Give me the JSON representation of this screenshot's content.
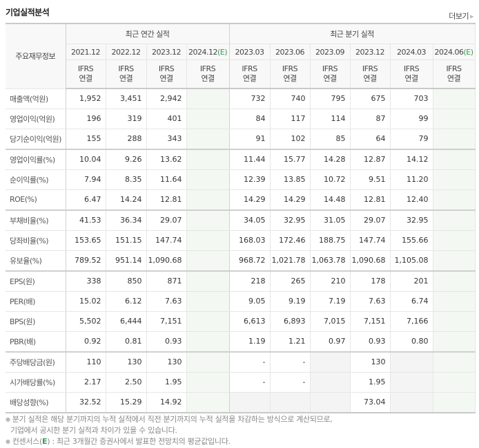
{
  "header": {
    "title": "기업실적분석",
    "more_label": "더보기"
  },
  "table": {
    "label_header": "주요재무정보",
    "groups": {
      "annual": "최근 연간 실적",
      "quarterly": "최근 분기 실적"
    },
    "periods": [
      {
        "date": "2021.12",
        "est": ""
      },
      {
        "date": "2022.12",
        "est": ""
      },
      {
        "date": "2023.12",
        "est": ""
      },
      {
        "date": "2024.12",
        "est": "(E)"
      },
      {
        "date": "2023.03",
        "est": ""
      },
      {
        "date": "2023.06",
        "est": ""
      },
      {
        "date": "2023.09",
        "est": ""
      },
      {
        "date": "2023.12",
        "est": ""
      },
      {
        "date": "2024.03",
        "est": ""
      },
      {
        "date": "2024.06",
        "est": "(E)"
      }
    ],
    "ifrs_line1": "IFRS",
    "ifrs_line2": "연결",
    "rows": [
      {
        "label": "매출액(억원)",
        "values": [
          "1,952",
          "3,451",
          "2,942",
          "",
          "732",
          "740",
          "795",
          "675",
          "703",
          ""
        ]
      },
      {
        "label": "영업이익(억원)",
        "values": [
          "196",
          "319",
          "401",
          "",
          "84",
          "117",
          "114",
          "87",
          "99",
          ""
        ]
      },
      {
        "label": "당기순이익(억원)",
        "values": [
          "155",
          "288",
          "343",
          "",
          "91",
          "102",
          "85",
          "64",
          "79",
          ""
        ]
      },
      {
        "label": "영업이익률(%)",
        "values": [
          "10.04",
          "9.26",
          "13.62",
          "",
          "11.44",
          "15.77",
          "14.28",
          "12.87",
          "14.12",
          ""
        ]
      },
      {
        "label": "순이익률(%)",
        "values": [
          "7.94",
          "8.35",
          "11.64",
          "",
          "12.39",
          "13.85",
          "10.72",
          "9.51",
          "11.20",
          ""
        ]
      },
      {
        "label": "ROE(%)",
        "values": [
          "6.47",
          "14.24",
          "12.81",
          "",
          "14.29",
          "14.29",
          "14.48",
          "12.81",
          "12.40",
          ""
        ]
      },
      {
        "label": "부채비율(%)",
        "values": [
          "41.53",
          "36.34",
          "29.07",
          "",
          "34.05",
          "32.95",
          "31.05",
          "29.07",
          "32.95",
          ""
        ]
      },
      {
        "label": "당좌비율(%)",
        "values": [
          "153.65",
          "151.15",
          "147.74",
          "",
          "168.03",
          "172.46",
          "188.75",
          "147.74",
          "155.66",
          ""
        ]
      },
      {
        "label": "유보율(%)",
        "values": [
          "789.52",
          "951.14",
          "1,090.68",
          "",
          "968.72",
          "1,021.78",
          "1,063.78",
          "1,090.68",
          "1,105.08",
          ""
        ]
      },
      {
        "label": "EPS(원)",
        "values": [
          "338",
          "850",
          "871",
          "",
          "218",
          "265",
          "210",
          "178",
          "201",
          ""
        ]
      },
      {
        "label": "PER(배)",
        "values": [
          "15.02",
          "6.12",
          "7.63",
          "",
          "9.05",
          "9.19",
          "7.19",
          "7.63",
          "6.74",
          ""
        ]
      },
      {
        "label": "BPS(원)",
        "values": [
          "5,502",
          "6,444",
          "7,151",
          "",
          "6,613",
          "6,893",
          "7,015",
          "7,151",
          "7,166",
          ""
        ]
      },
      {
        "label": "PBR(배)",
        "values": [
          "0.92",
          "0.81",
          "0.93",
          "",
          "1.19",
          "1.21",
          "0.97",
          "0.93",
          "0.80",
          ""
        ]
      },
      {
        "label": "주당배당금(원)",
        "values": [
          "110",
          "130",
          "130",
          "",
          "-",
          "-",
          "",
          "130",
          "",
          ""
        ]
      },
      {
        "label": "시가배당률(%)",
        "values": [
          "2.17",
          "2.50",
          "1.95",
          "",
          "-",
          "-",
          "",
          "1.95",
          "",
          ""
        ]
      },
      {
        "label": "배당성향(%)",
        "values": [
          "32.52",
          "15.29",
          "14.92",
          "",
          "",
          "",
          "",
          "73.04",
          "",
          ""
        ]
      }
    ]
  },
  "notes": {
    "line1": "분기 실적은 해당 분기까지의 누적 실적에서 직전 분기까지의 누적 실적을 차감하는 방식으로 계산되므로,",
    "line2": "기업에서 공시한 분기 실적과 차이가 있을 수 있습니다.",
    "line3_prefix": "컨센서스(",
    "line3_e": "E",
    "line3_suffix": ") : 최근 3개월간 증권사에서 발표한 전망치의 평균값입니다."
  },
  "colors": {
    "ifrs": "#e06b2a",
    "estimate": "#3a9a55",
    "estimate_bg": "#f3f8f3",
    "na_bg": "#f4f4f4"
  }
}
